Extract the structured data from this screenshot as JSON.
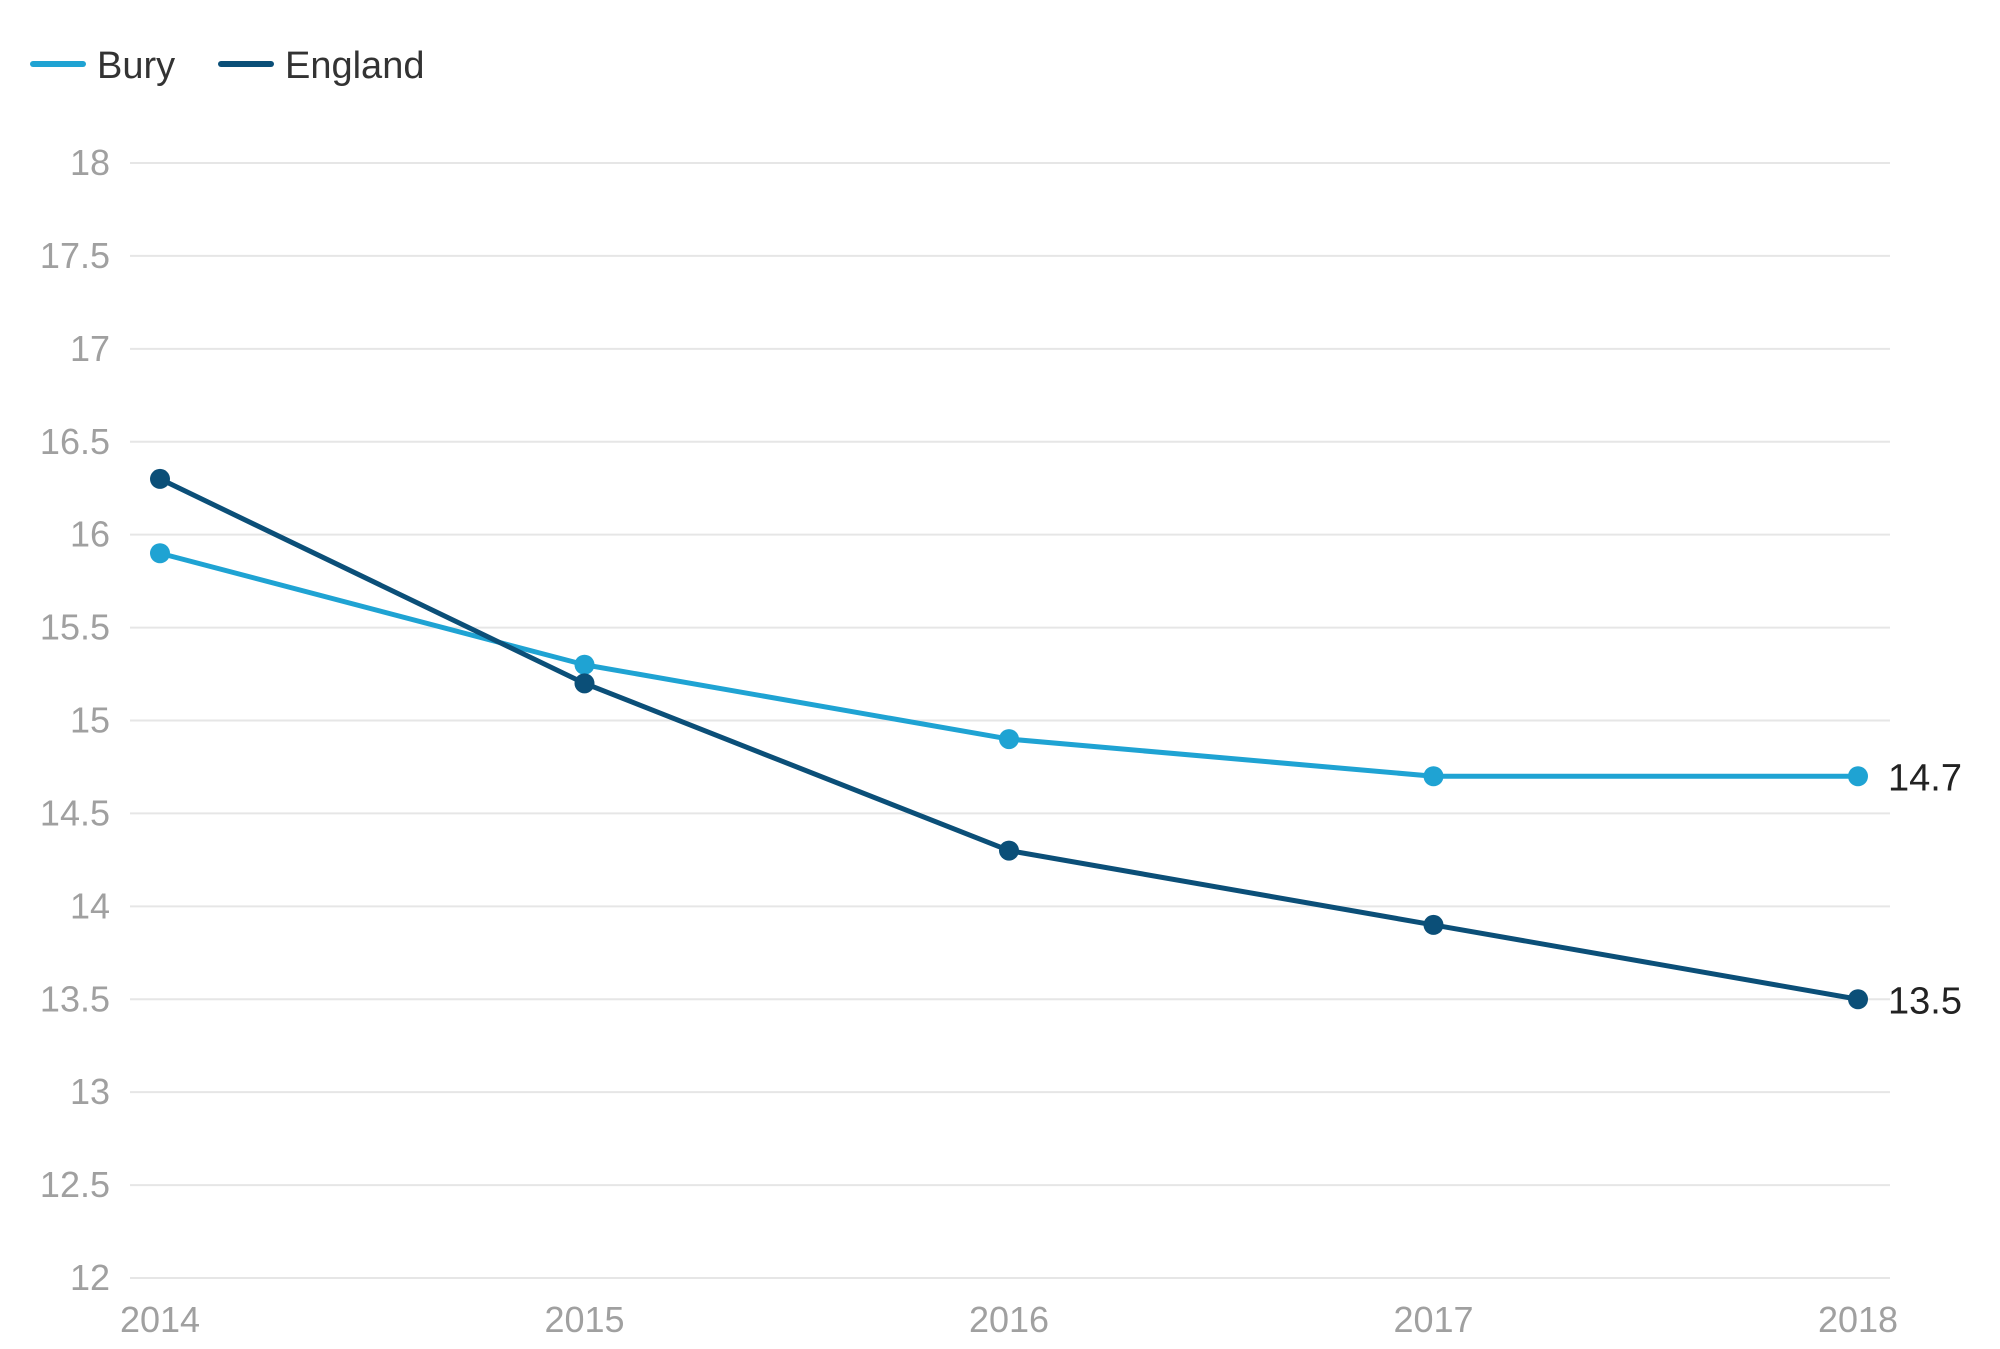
{
  "chart_data": {
    "type": "line",
    "title": "",
    "xlabel": "",
    "ylabel": "",
    "x": [
      "2014",
      "2015",
      "2016",
      "2017",
      "2018"
    ],
    "ylim": [
      12,
      18
    ],
    "yticks": [
      "18",
      "17.5",
      "17",
      "16.5",
      "16",
      "15.5",
      "15",
      "14.5",
      "14",
      "13.5",
      "13",
      "12.5",
      "12"
    ],
    "grid": true,
    "legend_position": "top-left",
    "series": [
      {
        "name": "Bury",
        "color": "#1fa3d3",
        "values": [
          15.9,
          15.3,
          14.9,
          14.7,
          14.7
        ],
        "end_label": "14.7"
      },
      {
        "name": "England",
        "color": "#0b4f78",
        "values": [
          16.3,
          15.2,
          14.3,
          13.9,
          13.5
        ],
        "end_label": "13.5"
      }
    ]
  }
}
